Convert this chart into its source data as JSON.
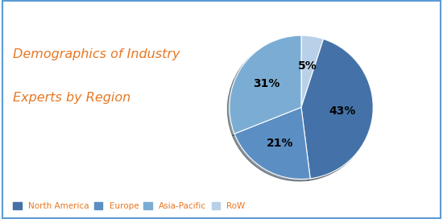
{
  "title_line1": "Demographics of Industry",
  "title_line2": "Experts by Region",
  "title_color": "#E87722",
  "segments": [
    "North America",
    "Europe",
    "Asia-Pacific",
    "RoW"
  ],
  "values": [
    43,
    21,
    31,
    5
  ],
  "colors": [
    "#4472A8",
    "#5B8FC4",
    "#7BADD4",
    "#B8D0E8"
  ],
  "legend_text_color": "#E87722",
  "background_color": "#FFFFFF",
  "border_color": "#5B9BD5",
  "label_fontsize": 10,
  "title_fontsize": 11.5
}
